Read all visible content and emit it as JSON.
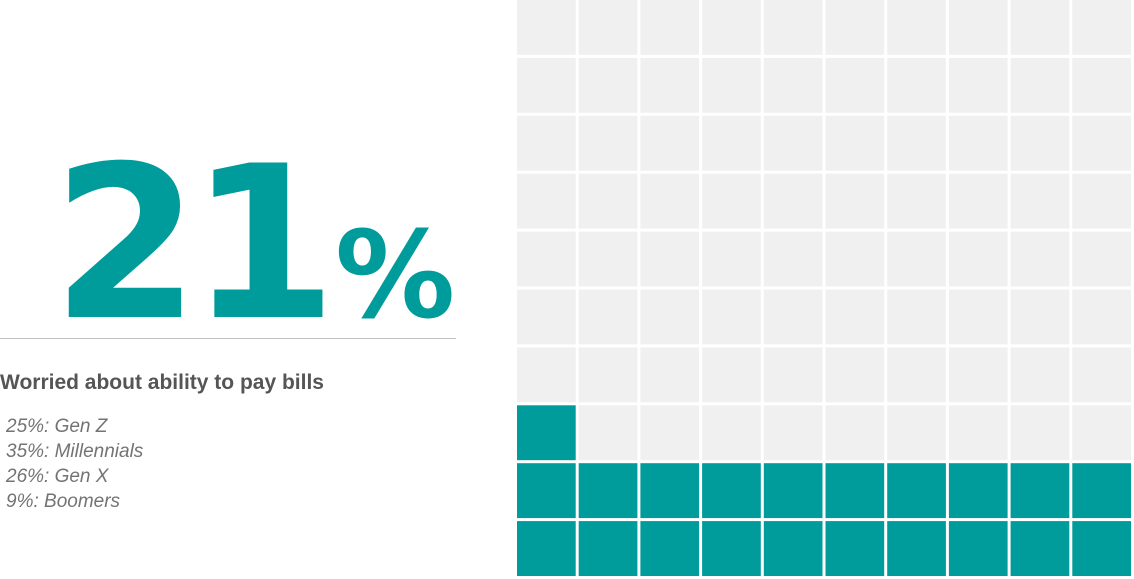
{
  "headline": {
    "number": "21",
    "unit": "%",
    "label": "Worried about ability to pay bills"
  },
  "breakdown": [
    "25%: Gen Z",
    "35%: Millennials",
    "26%: Gen X",
    "9%: Boomers"
  ],
  "colors": {
    "accent": "#009B9B",
    "empty": "#F0F0F0",
    "grid_line": "#FFFFFF",
    "label": "#555555",
    "breakdown": "#737373",
    "divider": "#BFBFBF"
  },
  "chart_data": {
    "type": "waffle",
    "value": 21,
    "total": 100,
    "columns": 10,
    "rows": 10,
    "fill_order": "bottom-left upward"
  }
}
